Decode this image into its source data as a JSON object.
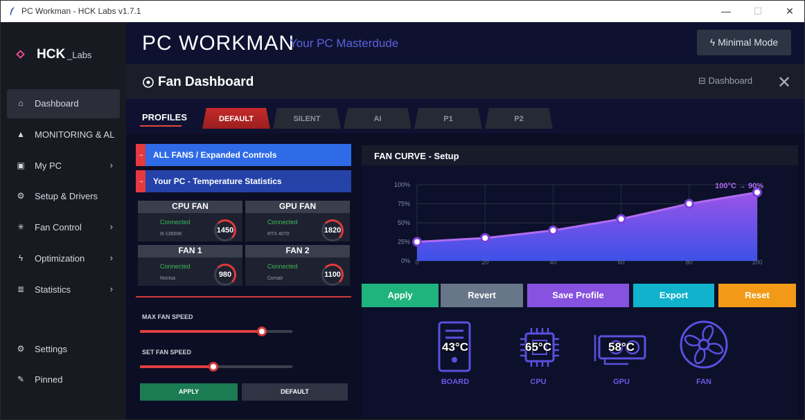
{
  "window": {
    "title": "PC Workman - HCK Labs v1.7.1",
    "minimize": "—",
    "maximize": "☐",
    "close": "✕"
  },
  "brand": {
    "name": "HCK",
    "suffix": "_Labs"
  },
  "sidebar": {
    "items": [
      {
        "label": "Dashboard",
        "icon": "home-icon",
        "glyph": "⌂",
        "active": true,
        "chevron": ""
      },
      {
        "label": "MONITORING & AL",
        "icon": "warning-icon",
        "glyph": "▲",
        "active": false,
        "chevron": ""
      },
      {
        "label": "My PC",
        "icon": "pc-icon",
        "glyph": "▣",
        "active": false,
        "chevron": "›"
      },
      {
        "label": "Setup & Drivers",
        "icon": "gear-icon",
        "glyph": "⚙",
        "active": false,
        "chevron": ""
      },
      {
        "label": "Fan Control",
        "icon": "fan-icon",
        "glyph": "✳",
        "active": false,
        "chevron": "›"
      },
      {
        "label": "Optimization",
        "icon": "bolt-icon",
        "glyph": "ϟ",
        "active": false,
        "chevron": "›"
      },
      {
        "label": "Statistics",
        "icon": "list-icon",
        "glyph": "≣",
        "active": false,
        "chevron": "›"
      }
    ],
    "bottom": [
      {
        "label": "Settings",
        "icon": "gear-icon",
        "glyph": "⚙"
      },
      {
        "label": "Pinned",
        "icon": "pin-icon",
        "glyph": "✎"
      }
    ]
  },
  "header": {
    "app_name": "PC  WORKMAN",
    "tagline": "Your PC Masterdude",
    "mode_button": "Minimal Mode"
  },
  "fan_dashboard": {
    "title": "Fan Dashboard",
    "back_link": "Dashboard",
    "close": "✕"
  },
  "profiles": {
    "label": "PROFILES",
    "tabs": [
      {
        "label": "DEFAULT",
        "active": true
      },
      {
        "label": "SILENT",
        "active": false
      },
      {
        "label": "AI",
        "active": false
      },
      {
        "label": "P1",
        "active": false
      },
      {
        "label": "P2",
        "active": false
      }
    ]
  },
  "sections": {
    "all_fans": {
      "arrow": "→",
      "label": "ALL FANS / Expanded Controls"
    },
    "temps": {
      "arrow": "→",
      "label": "Your PC - Temperature Statistics"
    }
  },
  "fans": [
    {
      "name": "CPU FAN",
      "status": "Connected",
      "model": "i5-13600K",
      "rpm": "1450"
    },
    {
      "name": "GPU FAN",
      "status": "Connected",
      "model": "RTX 4070",
      "rpm": "1820"
    },
    {
      "name": "FAN 1",
      "status": "Connected",
      "model": "Noctua",
      "rpm": "980"
    },
    {
      "name": "FAN 2",
      "status": "Connected",
      "model": "Corsair",
      "rpm": "1100"
    }
  ],
  "sliders": {
    "max": {
      "label": "MAX FAN SPEED",
      "value": 0.8
    },
    "set": {
      "label": "SET FAN SPEED",
      "value": 0.48
    }
  },
  "left_buttons": {
    "apply": "APPLY",
    "default": "DEFAULT"
  },
  "curve": {
    "title": "FAN CURVE - Setup",
    "annotation": "100°C → 90%",
    "y_ticks": [
      "100%",
      "75%",
      "50%",
      "25%",
      "0%"
    ],
    "x_ticks": [
      "0",
      "20",
      "40",
      "60",
      "80",
      "100"
    ],
    "colors": {
      "line": "#b06cf0",
      "fill_top": "#9a52e8",
      "fill_bottom": "#3a4fe8"
    }
  },
  "chart_data": {
    "type": "area",
    "title": "FAN CURVE - Setup",
    "x": [
      0,
      20,
      40,
      60,
      80,
      100
    ],
    "series": [
      {
        "values": [
          25,
          30,
          40,
          55,
          75,
          90
        ]
      }
    ],
    "xlim": [
      0,
      100
    ],
    "ylim": [
      0,
      100
    ],
    "grid": true
  },
  "actions": {
    "apply": "Apply",
    "revert": "Revert",
    "save": "Save Profile",
    "export": "Export",
    "reset": "Reset"
  },
  "hardware": [
    {
      "label": "BOARD",
      "temp": "43°C"
    },
    {
      "label": "CPU",
      "temp": "65°C"
    },
    {
      "label": "GPU",
      "temp": "58°C"
    },
    {
      "label": "FAN",
      "temp": ""
    }
  ]
}
